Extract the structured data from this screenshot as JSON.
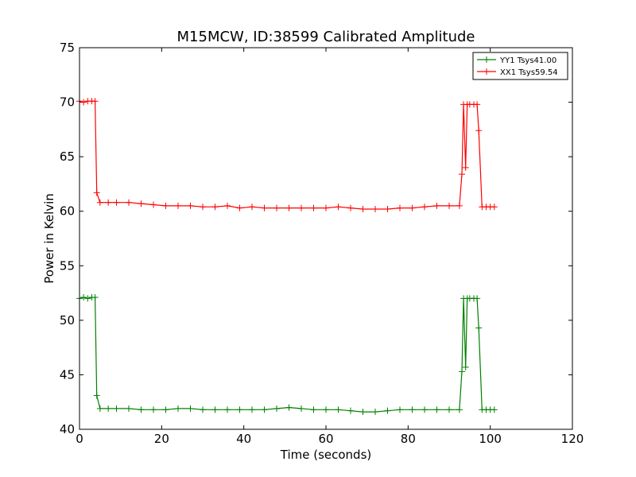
{
  "chart_data": {
    "type": "line",
    "title": "M15MCW, ID:38599 Calibrated Amplitude",
    "xlabel": "Time (seconds)",
    "ylabel": "Power in Kelvin",
    "xlim": [
      0,
      120
    ],
    "ylim": [
      40,
      75
    ],
    "xticks": [
      0,
      20,
      40,
      60,
      80,
      100,
      120
    ],
    "yticks": [
      40,
      45,
      50,
      55,
      60,
      65,
      70,
      75
    ],
    "grid": false,
    "legend_position": "top-right",
    "marker": "+",
    "series": [
      {
        "name": "YY1 Tsys41.00",
        "color": "#008000",
        "x": [
          0,
          1,
          2,
          3,
          3.8,
          4.2,
          5,
          7,
          9,
          12,
          15,
          18,
          21,
          24,
          27,
          30,
          33,
          36,
          39,
          42,
          45,
          48,
          51,
          54,
          57,
          60,
          63,
          66,
          69,
          72,
          75,
          78,
          81,
          84,
          87,
          90,
          92.5,
          93.1,
          93.5,
          94.0,
          94.4,
          95,
          96,
          96.8,
          97.2,
          98,
          99,
          100,
          101
        ],
        "values": [
          52.0,
          52.1,
          52.0,
          52.1,
          52.1,
          43.1,
          41.9,
          41.9,
          41.9,
          41.9,
          41.8,
          41.8,
          41.8,
          41.9,
          41.9,
          41.8,
          41.8,
          41.8,
          41.8,
          41.8,
          41.8,
          41.9,
          42.0,
          41.9,
          41.8,
          41.8,
          41.8,
          41.7,
          41.6,
          41.6,
          41.7,
          41.8,
          41.8,
          41.8,
          41.8,
          41.8,
          41.8,
          45.3,
          52.0,
          45.7,
          52.0,
          52.0,
          52.0,
          52.0,
          49.3,
          41.8,
          41.8,
          41.8,
          41.8
        ]
      },
      {
        "name": "XX1 Tsys59.54",
        "color": "#ff0000",
        "x": [
          0,
          1,
          2,
          3,
          3.8,
          4.2,
          5,
          7,
          9,
          12,
          15,
          18,
          21,
          24,
          27,
          30,
          33,
          36,
          39,
          42,
          45,
          48,
          51,
          54,
          57,
          60,
          63,
          66,
          69,
          72,
          75,
          78,
          81,
          84,
          87,
          90,
          92.5,
          93.1,
          93.5,
          94.0,
          94.4,
          95,
          96,
          96.8,
          97.2,
          98,
          99,
          100,
          101
        ],
        "values": [
          70.1,
          70.0,
          70.1,
          70.1,
          70.1,
          61.7,
          60.8,
          60.8,
          60.8,
          60.8,
          60.7,
          60.6,
          60.5,
          60.5,
          60.5,
          60.4,
          60.4,
          60.5,
          60.3,
          60.4,
          60.3,
          60.3,
          60.3,
          60.3,
          60.3,
          60.3,
          60.4,
          60.3,
          60.2,
          60.2,
          60.2,
          60.3,
          60.3,
          60.4,
          60.5,
          60.5,
          60.5,
          63.4,
          69.8,
          64.0,
          69.8,
          69.8,
          69.8,
          69.8,
          67.4,
          60.4,
          60.4,
          60.4,
          60.4
        ]
      }
    ]
  }
}
